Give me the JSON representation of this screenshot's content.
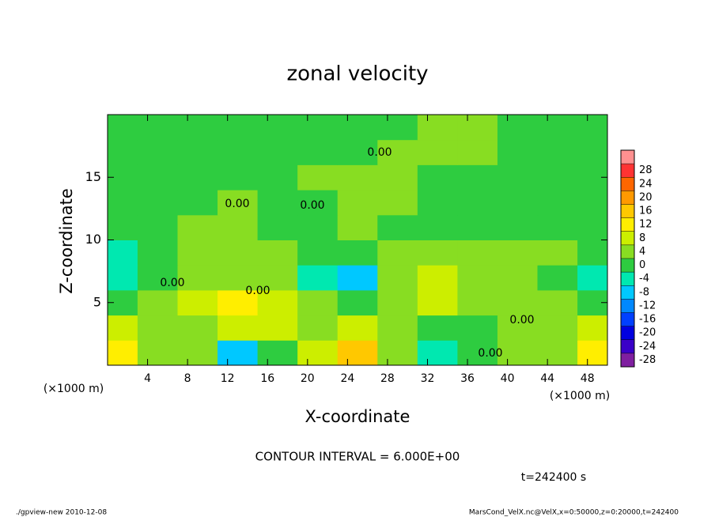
{
  "chart_data": {
    "type": "contour",
    "title": "zonal velocity",
    "xlabel": "X-coordinate",
    "ylabel": "Z-coordinate",
    "x_unit": "(×1000 m)",
    "contour_interval": "CONTOUR INTERVAL = 6.000E+00",
    "time_label": "t=242400 s",
    "footer_left": "./gpview-new  2010-12-08",
    "footer_right": "MarsCond_VelX.nc@VelX,x=0:50000,z=0:20000,t=242400",
    "contour_labels": [
      "0.00",
      "0.00",
      "0.00",
      "0.00",
      "0.00",
      "0.00",
      "0.00"
    ],
    "x": [
      1,
      5,
      9,
      13,
      17,
      21,
      25,
      29,
      33,
      37,
      41,
      45,
      49
    ],
    "y": [
      1,
      3,
      5,
      7,
      9,
      11,
      13,
      15,
      17,
      19
    ],
    "z": [
      [
        8,
        2,
        0,
        -10,
        -4,
        4,
        14,
        2,
        -8,
        -2,
        0,
        2,
        8
      ],
      [
        6,
        2,
        2,
        4,
        4,
        2,
        4,
        0,
        -4,
        -2,
        0,
        2,
        4
      ],
      [
        -4,
        2,
        4,
        8,
        6,
        0,
        -4,
        2,
        6,
        2,
        0,
        0,
        -2
      ],
      [
        -8,
        -2,
        2,
        2,
        0,
        -8,
        -10,
        0,
        6,
        2,
        0,
        -2,
        -8
      ],
      [
        -6,
        -2,
        0,
        0,
        0,
        -2,
        -2,
        0,
        2,
        0,
        0,
        0,
        -2
      ],
      [
        -1,
        -1,
        1,
        1,
        -1,
        -1,
        1,
        -1,
        -1,
        -1,
        -1,
        -1,
        -1
      ],
      [
        -1,
        -1,
        -1,
        1,
        -1,
        -1,
        1,
        1,
        -1,
        -1,
        -1,
        -1,
        -1
      ],
      [
        -1,
        -1,
        -1,
        -1,
        -1,
        1,
        1,
        1,
        -1,
        -1,
        -1,
        -1,
        -1
      ],
      [
        -1,
        -1,
        -1,
        -1,
        -1,
        -1,
        -1,
        1,
        1,
        1,
        -1,
        -1,
        -1
      ],
      [
        -1,
        -1,
        -1,
        -1,
        -1,
        -1,
        -1,
        -1,
        1,
        1,
        -1,
        -1,
        -1
      ]
    ],
    "xlim": [
      0,
      50
    ],
    "ylim": [
      0,
      20
    ],
    "xticks": [
      4,
      8,
      12,
      16,
      20,
      24,
      28,
      32,
      36,
      40,
      44,
      48
    ],
    "yticks": [
      5,
      10,
      15
    ],
    "colorbar": {
      "levels": [
        -28,
        -24,
        -20,
        -16,
        -12,
        -8,
        -4,
        0,
        4,
        8,
        12,
        16,
        20,
        24,
        28
      ],
      "colors": [
        "#7f1fa0",
        "#3a00c8",
        "#0000e0",
        "#0040ff",
        "#0088ff",
        "#00c8ff",
        "#00e8b0",
        "#2ecc40",
        "#88dd22",
        "#ccee00",
        "#ffee00",
        "#ffc800",
        "#ff9900",
        "#ff6600",
        "#ff3333",
        "#ff9090"
      ]
    }
  }
}
